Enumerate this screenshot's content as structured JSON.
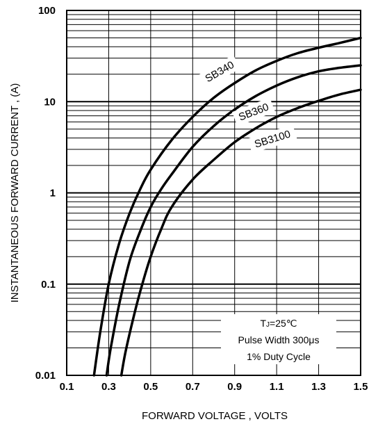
{
  "chart_data": {
    "type": "line",
    "title": "",
    "xlabel": "FORWARD VOLTAGE , VOLTS",
    "ylabel": "INSTANTANEOUS FORWARD CURRENT , (A)",
    "xlim": [
      0.1,
      1.5
    ],
    "ylim": [
      0.01,
      100
    ],
    "yscale": "log",
    "grid": true,
    "x_ticks": [
      "0.1",
      "0.3",
      "0.5",
      "0.7",
      "0.9",
      "1.1",
      "1.3",
      "1.5"
    ],
    "y_ticks": [
      "0.01",
      "0.1",
      "1",
      "10",
      "100"
    ],
    "series": [
      {
        "name": "SB340",
        "x": [
          0.23,
          0.26,
          0.3,
          0.35,
          0.4,
          0.45,
          0.5,
          0.6,
          0.7,
          0.8,
          0.9,
          1.0,
          1.1,
          1.2,
          1.3,
          1.4,
          1.5
        ],
        "y": [
          0.01,
          0.03,
          0.1,
          0.28,
          0.6,
          1.1,
          1.8,
          3.8,
          6.8,
          11,
          16,
          22,
          28,
          34,
          39,
          44,
          50
        ]
      },
      {
        "name": "SB360",
        "x": [
          0.29,
          0.31,
          0.35,
          0.4,
          0.45,
          0.5,
          0.55,
          0.6,
          0.7,
          0.8,
          0.9,
          1.0,
          1.1,
          1.2,
          1.3,
          1.4,
          1.5
        ],
        "y": [
          0.01,
          0.02,
          0.06,
          0.18,
          0.38,
          0.7,
          1.1,
          1.6,
          3.2,
          5.4,
          8.2,
          11.5,
          15,
          18.5,
          21.5,
          23.5,
          25
        ]
      },
      {
        "name": "SB3100",
        "x": [
          0.36,
          0.38,
          0.42,
          0.46,
          0.5,
          0.55,
          0.6,
          0.7,
          0.8,
          0.9,
          1.0,
          1.1,
          1.2,
          1.3,
          1.4,
          1.5
        ],
        "y": [
          0.01,
          0.018,
          0.045,
          0.1,
          0.2,
          0.4,
          0.7,
          1.4,
          2.3,
          3.6,
          5.1,
          6.8,
          8.5,
          10.2,
          12,
          13.5
        ]
      }
    ],
    "annotations": [
      "TJ=25℃",
      "Pulse Width 300μs",
      "1% Duty Cycle"
    ],
    "annotation_tj": {
      "base": "T",
      "sub": "J",
      "rest": "=25℃"
    }
  }
}
